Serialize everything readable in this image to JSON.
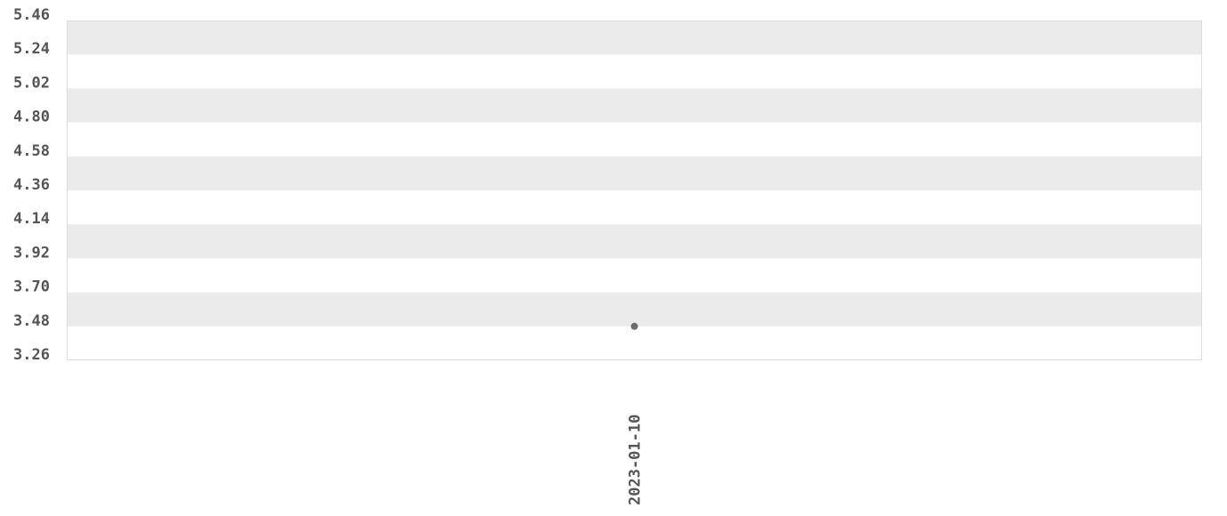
{
  "chart_data": {
    "type": "scatter",
    "title": "",
    "xlabel": "",
    "ylabel": "",
    "categories": [
      "2023-01-10"
    ],
    "series": [
      {
        "values": [
          3.48
        ]
      }
    ],
    "ylim": [
      3.26,
      5.46
    ],
    "yticks": [
      "5.46",
      "5.24",
      "5.02",
      "4.80",
      "4.58",
      "4.36",
      "4.14",
      "3.92",
      "3.70",
      "3.48",
      "3.26"
    ],
    "grid": "alternating horizontal bands",
    "legend": "none",
    "colors": {
      "band": "#ebebeb",
      "point": "#6b6b6b",
      "text": "#555555",
      "border": "#dddddd"
    }
  }
}
